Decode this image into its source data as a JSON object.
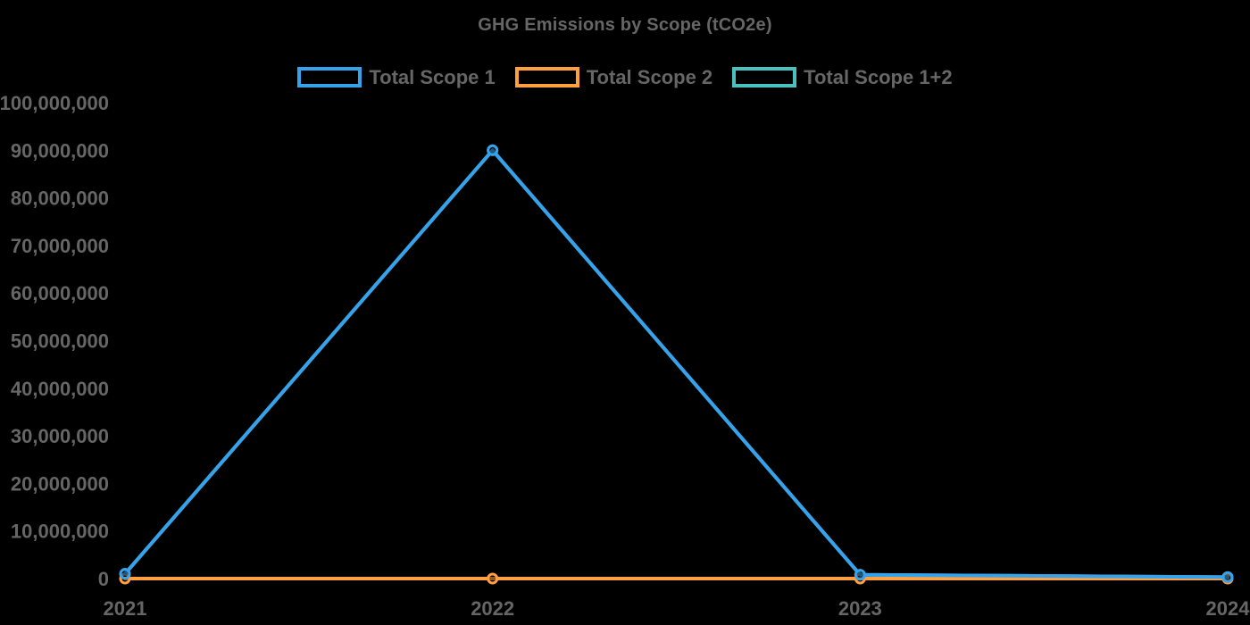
{
  "colors": {
    "background": "#000000",
    "text": "#666666",
    "scope1": "#36A2EB",
    "scope2": "#FF9F40",
    "scope1plus2": "#4BC0C0"
  },
  "chart_data": {
    "type": "line",
    "title": "GHG Emissions by Scope (tCO2e)",
    "categories": [
      "2021",
      "2022",
      "2023",
      "2024"
    ],
    "series": [
      {
        "name": "Total Scope 1",
        "color": "#36A2EB",
        "values": [
          1000000,
          90000000,
          800000,
          300000
        ]
      },
      {
        "name": "Total Scope 2",
        "color": "#FF9F40",
        "values": [
          0,
          0,
          0,
          0
        ]
      },
      {
        "name": "Total Scope 1+2",
        "color": "#4BC0C0",
        "values": [
          1000000,
          90000000,
          800000,
          300000
        ]
      }
    ],
    "xlabel": "",
    "ylabel": "",
    "ylim": [
      0,
      100000000
    ],
    "y_tick_labels": [
      "0",
      "10,000,000",
      "20,000,000",
      "30,000,000",
      "40,000,000",
      "50,000,000",
      "60,000,000",
      "70,000,000",
      "80,000,000",
      "90,000,000",
      "100,000,000"
    ],
    "grid": false,
    "legend_position": "top",
    "point_style": "open-circle",
    "line_width": 4
  }
}
